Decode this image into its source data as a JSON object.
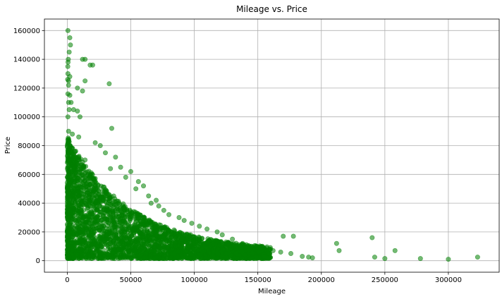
{
  "chart_data": {
    "type": "scatter",
    "title": "Mileage vs. Price",
    "xlabel": "Mileage",
    "ylabel": "Price",
    "xlim": [
      -18000,
      340000
    ],
    "ylim": [
      -8000,
      168000
    ],
    "xticks": [
      0,
      50000,
      100000,
      150000,
      200000,
      250000,
      300000
    ],
    "yticks": [
      0,
      20000,
      40000,
      60000,
      80000,
      100000,
      120000,
      140000,
      160000
    ],
    "grid": true,
    "point_color": "#008000",
    "point_alpha": 0.55,
    "series": [
      {
        "points": [
          [
            500,
            160000
          ],
          [
            2000,
            155000
          ],
          [
            2500,
            150000
          ],
          [
            1500,
            145000
          ],
          [
            800,
            140000
          ],
          [
            600,
            138000
          ],
          [
            400,
            135000
          ],
          [
            12000,
            140000
          ],
          [
            14000,
            140000
          ],
          [
            18000,
            136000
          ],
          [
            20000,
            136000
          ],
          [
            500,
            130000
          ],
          [
            2000,
            128000
          ],
          [
            300,
            126000
          ],
          [
            1000,
            125000
          ],
          [
            14000,
            125000
          ],
          [
            33000,
            123000
          ],
          [
            1000,
            122000
          ],
          [
            8000,
            120000
          ],
          [
            12000,
            118000
          ],
          [
            500,
            116000
          ],
          [
            2000,
            115000
          ],
          [
            1000,
            110000
          ],
          [
            3000,
            110000
          ],
          [
            1500,
            105000
          ],
          [
            5000,
            105000
          ],
          [
            8000,
            104000
          ],
          [
            10000,
            100000
          ],
          [
            500,
            100000
          ],
          [
            35000,
            92000
          ],
          [
            1000,
            90000
          ],
          [
            4000,
            88000
          ],
          [
            9000,
            86000
          ],
          [
            600,
            82000
          ],
          [
            22000,
            82000
          ],
          [
            26000,
            80000
          ],
          [
            2000,
            76000
          ],
          [
            30000,
            75000
          ],
          [
            38000,
            72000
          ],
          [
            14000,
            70000
          ],
          [
            42000,
            65000
          ],
          [
            34000,
            64000
          ],
          [
            50000,
            62000
          ],
          [
            46000,
            58000
          ],
          [
            56000,
            55000
          ],
          [
            60000,
            52000
          ],
          [
            54000,
            50000
          ],
          [
            64000,
            45000
          ],
          [
            70000,
            42000
          ],
          [
            66000,
            40000
          ],
          [
            72000,
            38000
          ],
          [
            76000,
            35000
          ],
          [
            80000,
            32000
          ],
          [
            88000,
            30000
          ],
          [
            92000,
            28000
          ],
          [
            98000,
            26000
          ],
          [
            104000,
            24000
          ],
          [
            110000,
            22000
          ],
          [
            118000,
            20000
          ],
          [
            122000,
            18000
          ],
          [
            130000,
            15000
          ],
          [
            138000,
            12000
          ],
          [
            145000,
            10000
          ],
          [
            152000,
            9000
          ],
          [
            160000,
            8000
          ],
          [
            162000,
            7000
          ],
          [
            168000,
            6000
          ],
          [
            170000,
            17000
          ],
          [
            178000,
            17000
          ],
          [
            176000,
            5000
          ],
          [
            185000,
            3000
          ],
          [
            190000,
            2500
          ],
          [
            193000,
            2000
          ],
          [
            212000,
            12000
          ],
          [
            214000,
            7000
          ],
          [
            240000,
            16000
          ],
          [
            242000,
            2500
          ],
          [
            250000,
            1500
          ],
          [
            258000,
            7000
          ],
          [
            278000,
            1500
          ],
          [
            300000,
            1000
          ],
          [
            323000,
            2500
          ],
          [
            40000,
            20000
          ],
          [
            55000,
            15000
          ],
          [
            85000,
            10000
          ],
          [
            100000,
            8000
          ],
          [
            115000,
            6000
          ],
          [
            125000,
            5000
          ],
          [
            140000,
            4000
          ],
          [
            155000,
            3000
          ],
          [
            5000,
            2000
          ],
          [
            20000,
            3000
          ],
          [
            45000,
            2500
          ],
          [
            70000,
            2000
          ],
          [
            95000,
            1800
          ]
        ]
      }
    ],
    "dense_region": {
      "mileage_max": 160000,
      "price_min": 0,
      "price_max_at_zero_mileage": 80000
    }
  }
}
